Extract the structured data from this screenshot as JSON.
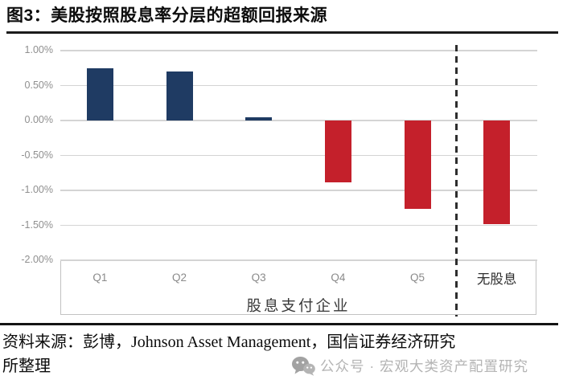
{
  "header": {
    "title": "图3：美股按照股息率分层的超额回报来源"
  },
  "chart_data": {
    "type": "bar",
    "categories": [
      "Q1",
      "Q2",
      "Q3",
      "Q4",
      "Q5",
      "无股息"
    ],
    "values": [
      0.75,
      0.7,
      0.05,
      -0.88,
      -1.27,
      -1.48
    ],
    "unit": "%",
    "title": "美股按照股息率分层的超额回报来源",
    "xlabel": "股息支付企业",
    "ylabel": "",
    "ylim": [
      -2.0,
      1.0
    ],
    "yticks": [
      "1.00%",
      "0.50%",
      "0.00%",
      "-0.50%",
      "-1.00%",
      "-1.50%",
      "-2.00%"
    ],
    "ytick_values": [
      1.0,
      0.5,
      0.0,
      -0.5,
      -1.0,
      -1.5,
      -2.0
    ],
    "group_label": "股息支付企业",
    "separator_after": "Q5",
    "grid": true,
    "legend": "none",
    "colors": {
      "positive": "#1F3B63",
      "negative": "#C4202B",
      "gridline": "#d4d4d4",
      "dashed_separator": "#2e2e2e"
    }
  },
  "footer": {
    "source_line1": "资料来源：彭博，Johnson Asset Management，国信证券经济研究",
    "source_line2": "所整理",
    "watermark": {
      "icon": "wechat-icon",
      "text": "公众号 · 宏观大类资产配置研究",
      "color": "#b4b4b4"
    }
  }
}
